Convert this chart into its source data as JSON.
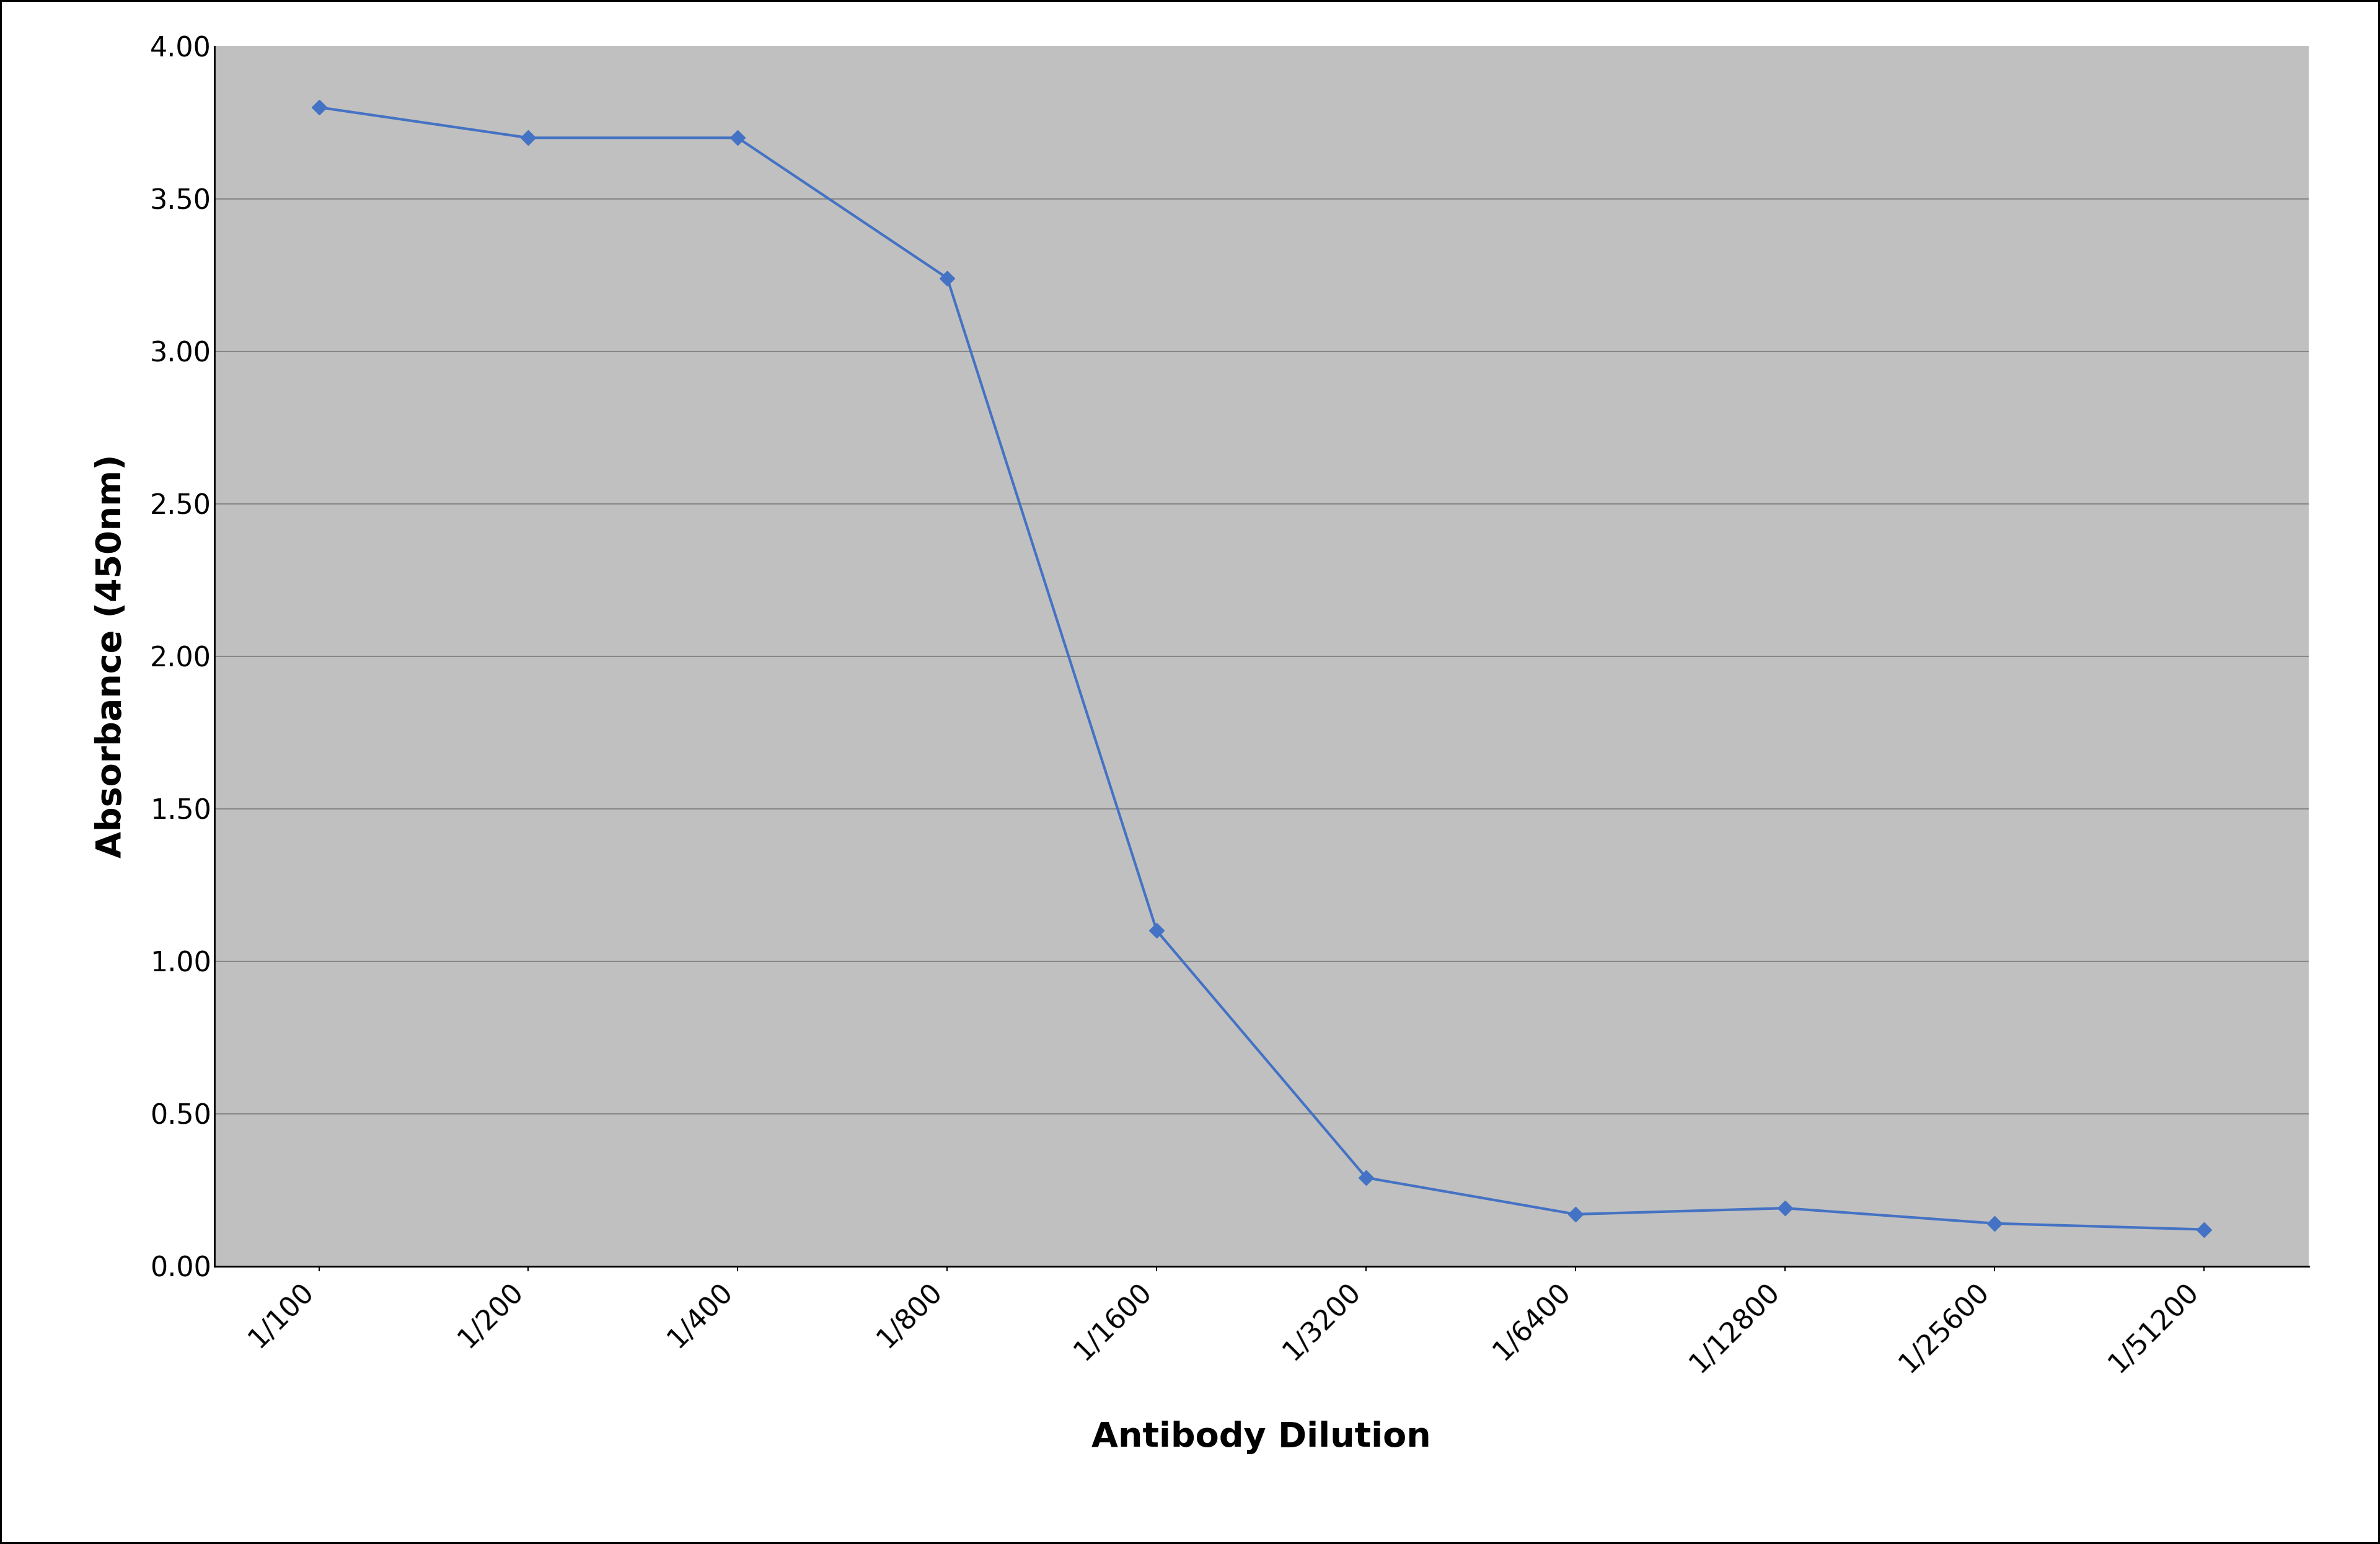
{
  "x_labels": [
    "1/100",
    "1/200",
    "1/400",
    "1/800",
    "1/1600",
    "1/3200",
    "1/6400",
    "1/12800",
    "1/25600",
    "1/51200"
  ],
  "y_values": [
    3.8,
    3.7,
    3.7,
    3.24,
    1.1,
    0.29,
    0.17,
    0.19,
    0.14,
    0.12
  ],
  "ylabel": "Absorbance (450nm)",
  "xlabel": "Antibody Dilution",
  "ylim": [
    0.0,
    4.0
  ],
  "yticks": [
    0.0,
    0.5,
    1.0,
    1.5,
    2.0,
    2.5,
    3.0,
    3.5,
    4.0
  ],
  "ytick_labels": [
    "0.00",
    "0.50",
    "1.00",
    "1.50",
    "2.00",
    "2.50",
    "3.00",
    "3.50",
    "4.00"
  ],
  "line_color": "#4472C4",
  "marker_color": "#4472C4",
  "bg_color": "#C0C0C0",
  "outer_bg": "#FFFFFF",
  "grid_color": "#888888",
  "border_color": "#000000",
  "tick_label_fontsize": 32,
  "axis_label_fontsize": 40,
  "axis_label_fontweight": "bold",
  "line_width": 3.0,
  "marker_size": 12
}
